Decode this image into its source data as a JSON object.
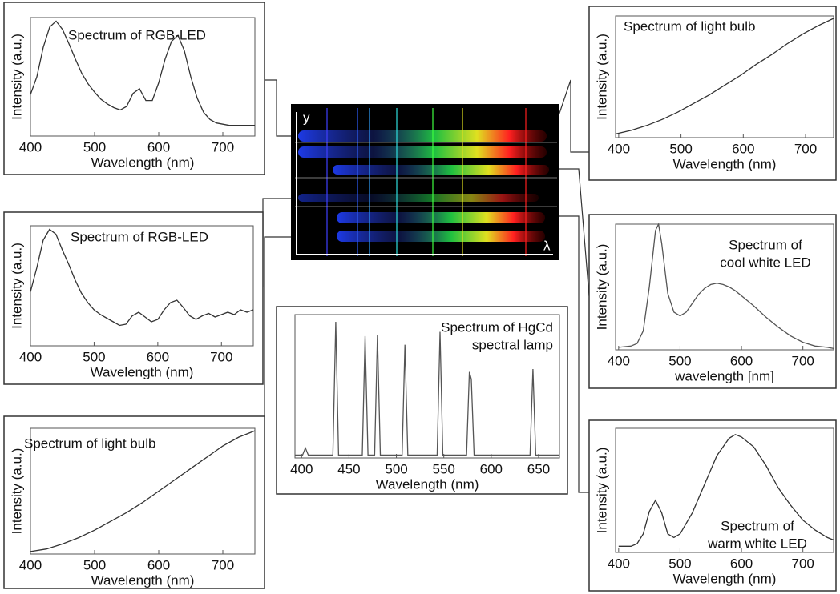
{
  "chart_data": [
    {
      "type": "line",
      "title": [
        "Spectrum of RGB-LED"
      ],
      "xlabel": "Wavelength (nm)",
      "ylabel": "Intensity (a.u.)",
      "xlim": [
        400,
        750
      ],
      "xticks": [
        400,
        500,
        600,
        700
      ],
      "ylim": [
        0,
        1
      ],
      "series": [
        {
          "color": "#333333",
          "x": [
            400,
            410,
            420,
            430,
            440,
            450,
            460,
            470,
            480,
            490,
            500,
            510,
            520,
            530,
            540,
            550,
            560,
            570,
            580,
            590,
            600,
            610,
            620,
            630,
            640,
            650,
            660,
            670,
            680,
            690,
            700,
            710,
            720,
            730,
            740,
            750
          ],
          "values": [
            0.35,
            0.5,
            0.75,
            0.92,
            0.97,
            0.9,
            0.78,
            0.65,
            0.53,
            0.44,
            0.37,
            0.31,
            0.27,
            0.24,
            0.22,
            0.25,
            0.36,
            0.4,
            0.3,
            0.3,
            0.45,
            0.65,
            0.8,
            0.85,
            0.72,
            0.5,
            0.32,
            0.2,
            0.14,
            0.11,
            0.1,
            0.09,
            0.09,
            0.09,
            0.09,
            0.09
          ]
        }
      ]
    },
    {
      "type": "line",
      "title": [
        "Spectrum of RGB-LED"
      ],
      "xlabel": "Wavelength (nm)",
      "ylabel": "Intensity (a.u.)",
      "xlim": [
        400,
        750
      ],
      "xticks": [
        400,
        500,
        600,
        700
      ],
      "ylim": [
        0,
        1
      ],
      "series": [
        {
          "color": "#333333",
          "x": [
            400,
            410,
            420,
            430,
            440,
            450,
            460,
            470,
            480,
            490,
            500,
            510,
            520,
            530,
            540,
            550,
            560,
            570,
            580,
            590,
            600,
            610,
            620,
            630,
            640,
            650,
            660,
            670,
            680,
            690,
            700,
            710,
            720,
            730,
            740,
            750
          ],
          "values": [
            0.45,
            0.65,
            0.88,
            0.97,
            0.93,
            0.8,
            0.68,
            0.55,
            0.44,
            0.36,
            0.3,
            0.26,
            0.23,
            0.2,
            0.17,
            0.18,
            0.25,
            0.28,
            0.24,
            0.2,
            0.22,
            0.3,
            0.36,
            0.38,
            0.32,
            0.25,
            0.22,
            0.25,
            0.27,
            0.24,
            0.26,
            0.28,
            0.26,
            0.3,
            0.28,
            0.3
          ]
        }
      ]
    },
    {
      "type": "line",
      "title": [
        "Spectrum of light bulb"
      ],
      "xlabel": "Wavelength (nm)",
      "ylabel": "Intensity (a.u.)",
      "xlim": [
        400,
        750
      ],
      "xticks": [
        400,
        500,
        600,
        700
      ],
      "ylim": [
        0,
        1
      ],
      "series": [
        {
          "color": "#333333",
          "x": [
            400,
            425,
            450,
            475,
            500,
            525,
            550,
            575,
            600,
            625,
            650,
            675,
            700,
            725,
            750
          ],
          "values": [
            0.02,
            0.04,
            0.08,
            0.13,
            0.19,
            0.26,
            0.33,
            0.41,
            0.5,
            0.59,
            0.68,
            0.77,
            0.86,
            0.93,
            0.98
          ]
        }
      ]
    },
    {
      "type": "line",
      "title": [
        "Spectrum of HgCd",
        "spectral lamp"
      ],
      "xlabel": "Wavelength (nm)",
      "xlim": [
        393,
        672
      ],
      "xticks": [
        400,
        450,
        500,
        550,
        600,
        650
      ],
      "ylim": [
        0,
        1
      ],
      "series": [
        {
          "color": "#555555",
          "x": [
            393,
            401,
            404,
            407,
            433,
            436,
            439,
            464,
            467,
            470,
            477,
            480,
            483,
            506,
            509,
            512,
            543,
            546,
            549,
            574,
            577,
            579,
            582,
            641,
            644,
            647,
            672
          ],
          "values": [
            0.02,
            0.02,
            0.07,
            0.02,
            0.02,
            0.95,
            0.02,
            0.02,
            0.85,
            0.02,
            0.02,
            0.86,
            0.02,
            0.02,
            0.79,
            0.02,
            0.02,
            0.88,
            0.02,
            0.02,
            0.6,
            0.55,
            0.02,
            0.02,
            0.62,
            0.02,
            0.02
          ]
        }
      ]
    },
    {
      "type": "line",
      "title": [
        "Spectrum of light bulb"
      ],
      "xlabel": "Wavelength (nm)",
      "ylabel": "Intensity (a.u.)",
      "xlim": [
        395,
        745
      ],
      "xticks": [
        400,
        500,
        600,
        700
      ],
      "ylim": [
        0,
        1
      ],
      "series": [
        {
          "color": "#333333",
          "x": [
            395,
            420,
            445,
            470,
            495,
            520,
            545,
            570,
            595,
            620,
            645,
            670,
            695,
            720,
            745
          ],
          "values": [
            0.03,
            0.06,
            0.1,
            0.15,
            0.21,
            0.28,
            0.35,
            0.43,
            0.51,
            0.6,
            0.68,
            0.77,
            0.85,
            0.92,
            0.98
          ]
        }
      ]
    },
    {
      "type": "line",
      "title": [
        "Spectrum of",
        "cool white LED"
      ],
      "xlabel": "wavelength [nm]",
      "ylabel": "Intensity (a.u.)",
      "xlim": [
        395,
        750
      ],
      "xticks": [
        400,
        500,
        600,
        700
      ],
      "ylim": [
        0,
        1
      ],
      "series": [
        {
          "color": "#555555",
          "x": [
            400,
            420,
            430,
            440,
            450,
            460,
            465,
            470,
            480,
            490,
            500,
            510,
            520,
            530,
            540,
            550,
            560,
            570,
            580,
            590,
            600,
            620,
            640,
            660,
            680,
            700,
            720,
            740,
            750
          ],
          "values": [
            0.02,
            0.03,
            0.05,
            0.15,
            0.5,
            0.95,
            1.0,
            0.85,
            0.45,
            0.3,
            0.27,
            0.3,
            0.37,
            0.44,
            0.49,
            0.52,
            0.53,
            0.52,
            0.5,
            0.47,
            0.43,
            0.35,
            0.26,
            0.18,
            0.11,
            0.06,
            0.03,
            0.02,
            0.01
          ]
        }
      ]
    },
    {
      "type": "line",
      "title": [
        "Spectrum of",
        "warm white LED"
      ],
      "xlabel": "Wavelength (nm)",
      "ylabel": "Intensity (a.u.)",
      "xlim": [
        395,
        750
      ],
      "xticks": [
        400,
        500,
        600,
        700
      ],
      "ylim": [
        0,
        1
      ],
      "series": [
        {
          "color": "#333333",
          "x": [
            400,
            420,
            430,
            440,
            450,
            460,
            470,
            480,
            490,
            500,
            520,
            540,
            560,
            580,
            590,
            600,
            620,
            640,
            660,
            680,
            700,
            720,
            740,
            750
          ],
          "values": [
            0.05,
            0.05,
            0.07,
            0.15,
            0.33,
            0.42,
            0.32,
            0.15,
            0.12,
            0.15,
            0.32,
            0.55,
            0.78,
            0.92,
            0.95,
            0.93,
            0.85,
            0.7,
            0.52,
            0.38,
            0.26,
            0.18,
            0.12,
            0.1
          ]
        }
      ]
    }
  ],
  "spectrograph": {
    "y_axis": "y",
    "x_axis": "λ"
  }
}
